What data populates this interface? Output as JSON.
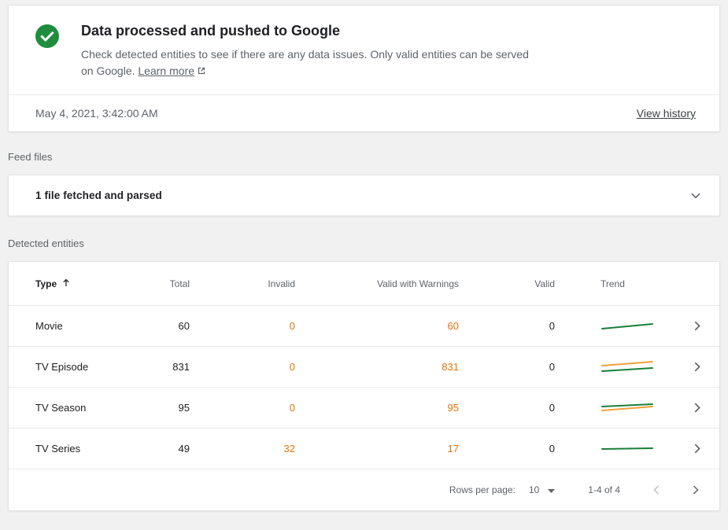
{
  "colors": {
    "success_green": "#1e8e3e",
    "warning_orange": "#e8710a",
    "trend_green": "#188038",
    "trend_orange": "#f0a13b",
    "divider_gray": "#e8eaed",
    "text_gray": "#5f6368"
  },
  "status_card": {
    "title": "Data processed and pushed to Google",
    "description": "Check detected entities to see if there are any data issues. Only valid entities can be served on Google.",
    "learn_more_label": "Learn more",
    "timestamp": "May 4, 2021, 3:42:00 AM",
    "view_history_label": "View history"
  },
  "feed_files": {
    "section_label": "Feed files",
    "summary": "1 file fetched and parsed"
  },
  "detected_entities": {
    "section_label": "Detected entities",
    "columns": {
      "type": "Type",
      "total": "Total",
      "invalid": "Invalid",
      "valid_with_warnings": "Valid with Warnings",
      "valid": "Valid",
      "trend": "Trend"
    },
    "rows": [
      {
        "type": "Movie",
        "total": "60",
        "invalid": "0",
        "valid_with_warnings": "60",
        "valid": "0",
        "trend": {
          "lines": [
            {
              "color": "#188038",
              "points": [
                [
                  2,
                  14
                ],
                [
                  66,
                  8
                ]
              ]
            }
          ]
        }
      },
      {
        "type": "TV Episode",
        "total": "831",
        "invalid": "0",
        "valid_with_warnings": "831",
        "valid": "0",
        "trend": {
          "lines": [
            {
              "color": "#f0a13b",
              "points": [
                [
                  2,
                  9
                ],
                [
                  66,
                  4
                ]
              ]
            },
            {
              "color": "#188038",
              "points": [
                [
                  2,
                  16
                ],
                [
                  66,
                  12
                ]
              ]
            }
          ]
        }
      },
      {
        "type": "TV Season",
        "total": "95",
        "invalid": "0",
        "valid_with_warnings": "95",
        "valid": "0",
        "trend": {
          "lines": [
            {
              "color": "#188038",
              "points": [
                [
                  2,
                  9
                ],
                [
                  66,
                  6
                ]
              ]
            },
            {
              "color": "#f0a13b",
              "points": [
                [
                  2,
                  14
                ],
                [
                  66,
                  9
                ]
              ]
            }
          ]
        }
      },
      {
        "type": "TV Series",
        "total": "49",
        "invalid": "32",
        "valid_with_warnings": "17",
        "valid": "0",
        "trend": {
          "lines": [
            {
              "color": "#188038",
              "points": [
                [
                  2,
                  11
                ],
                [
                  66,
                  10
                ]
              ]
            }
          ]
        }
      }
    ],
    "pagination": {
      "rows_per_page_label": "Rows per page:",
      "rows_per_page_value": "10",
      "range_label": "1-4 of 4"
    }
  },
  "icons": [
    "check-circle-icon",
    "external-link-icon",
    "chevron-down-icon",
    "sort-ascending-icon",
    "chevron-right-icon",
    "dropdown-arrow-icon",
    "prev-page-icon",
    "next-page-icon"
  ]
}
